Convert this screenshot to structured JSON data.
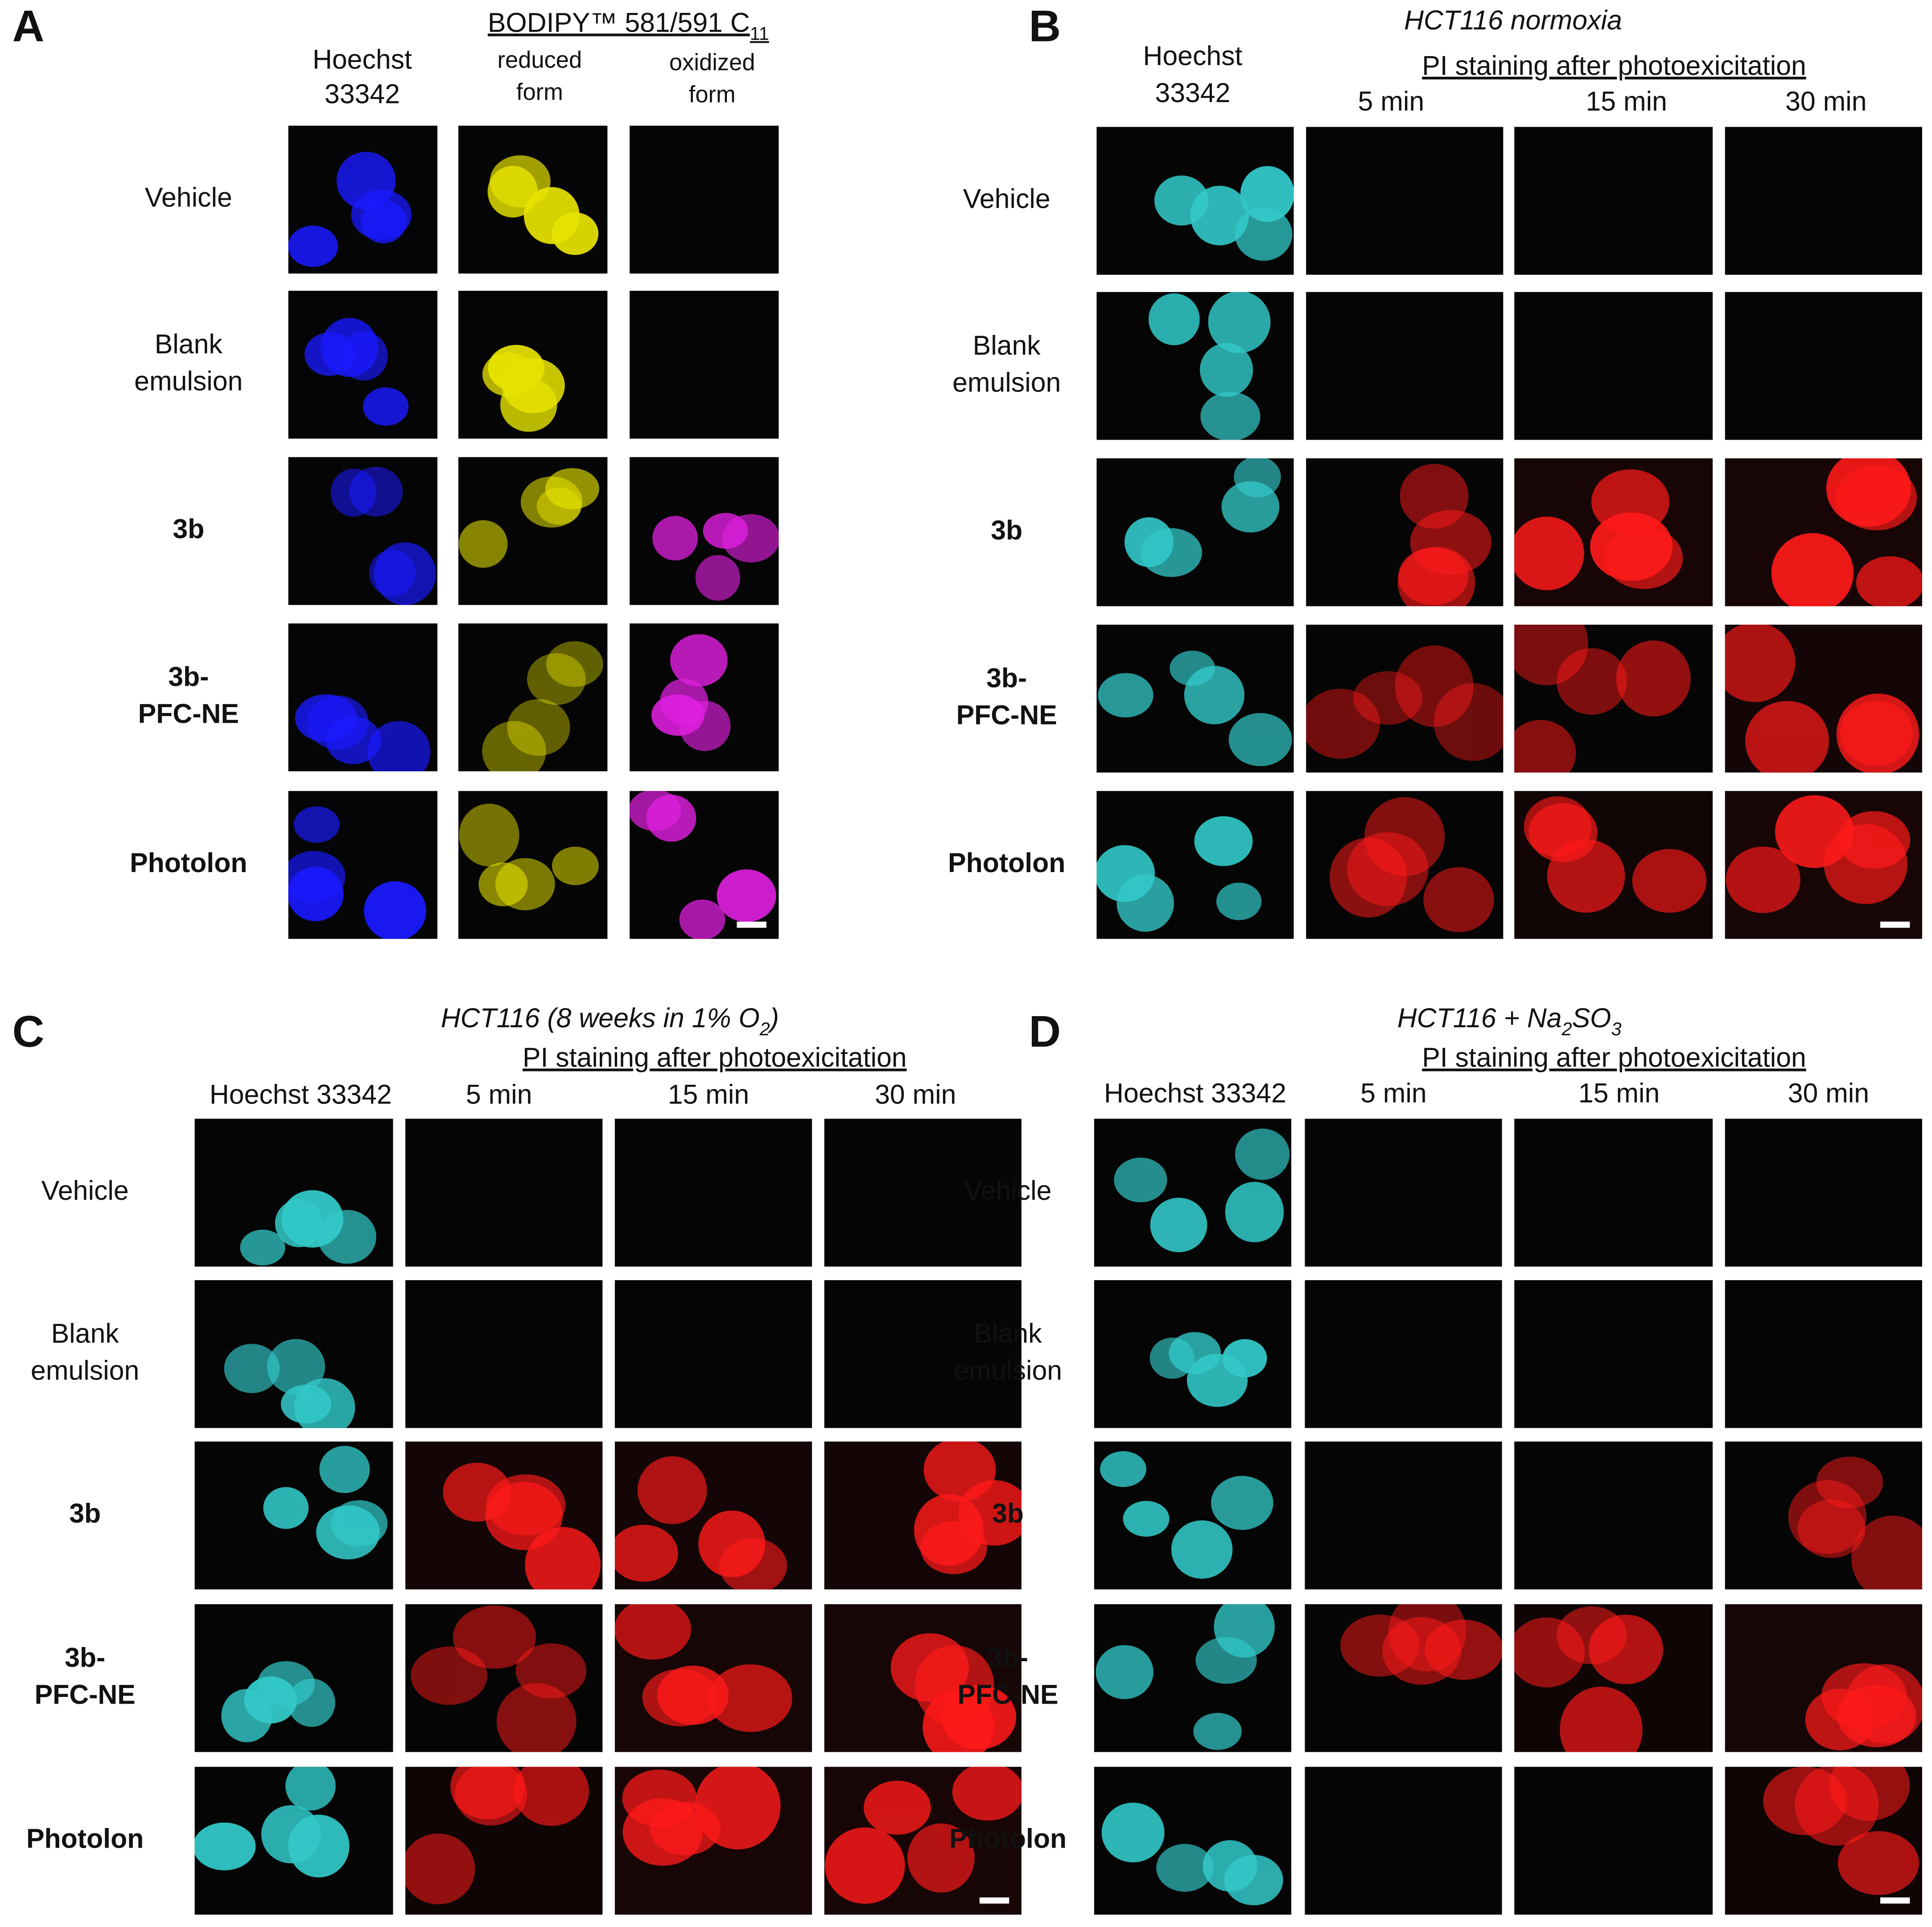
{
  "panels": [
    {
      "letter": "A",
      "title": [
        {
          "text": "BODIPY™ 581/591 C"
        },
        {
          "sub": "11"
        }
      ],
      "columns": [
        [
          "Hoechst",
          "33342"
        ],
        [
          "reduced",
          "form"
        ],
        [
          "oxidized",
          "form"
        ]
      ],
      "row_labels": [
        [
          "Vehicle"
        ],
        [
          "Blank",
          "emulsion"
        ],
        [
          "3b"
        ],
        [
          "3b-",
          "PFC-NE"
        ],
        [
          "Photolon"
        ]
      ]
    },
    {
      "letter": "B",
      "title": [
        {
          "text": "HCT116 normoxia"
        }
      ],
      "group_header": "PI staining after photoexicitation",
      "columns": [
        [
          "Hoechst",
          "33342"
        ],
        [
          "5 min"
        ],
        [
          "15 min"
        ],
        [
          "30 min"
        ]
      ],
      "row_labels": [
        [
          "Vehicle"
        ],
        [
          "Blank",
          "emulsion"
        ],
        [
          "3b"
        ],
        [
          "3b-",
          "PFC-NE"
        ],
        [
          "Photolon"
        ]
      ]
    },
    {
      "letter": "C",
      "title": [
        {
          "text": "HCT116 (8 weeks in 1% O"
        },
        {
          "sub": "2"
        },
        {
          "text": ")"
        }
      ],
      "group_header": "PI staining after photoexicitation",
      "columns": [
        [
          "Hoechst 33342"
        ],
        [
          "5 min"
        ],
        [
          "15 min"
        ],
        [
          "30 min"
        ]
      ],
      "row_labels": [
        [
          "Vehicle"
        ],
        [
          "Blank",
          "emulsion"
        ],
        [
          "3b"
        ],
        [
          "3b-",
          "PFC-NE"
        ],
        [
          "Photolon"
        ]
      ]
    },
    {
      "letter": "D",
      "title": [
        {
          "text": "HCT116 + Na"
        },
        {
          "sub": "2"
        },
        {
          "text": "SO"
        },
        {
          "sub": "3"
        }
      ],
      "group_header": "PI staining after photoexicitation",
      "columns": [
        [
          "Hoechst 33342"
        ],
        [
          "5 min"
        ],
        [
          "15 min"
        ],
        [
          "30 min"
        ]
      ],
      "row_labels": [
        [
          "Vehicle"
        ],
        [
          "Blank",
          "emulsion"
        ],
        [
          "3b"
        ],
        [
          "3b-",
          "PFC-NE"
        ],
        [
          "Photolon"
        ]
      ]
    }
  ]
}
